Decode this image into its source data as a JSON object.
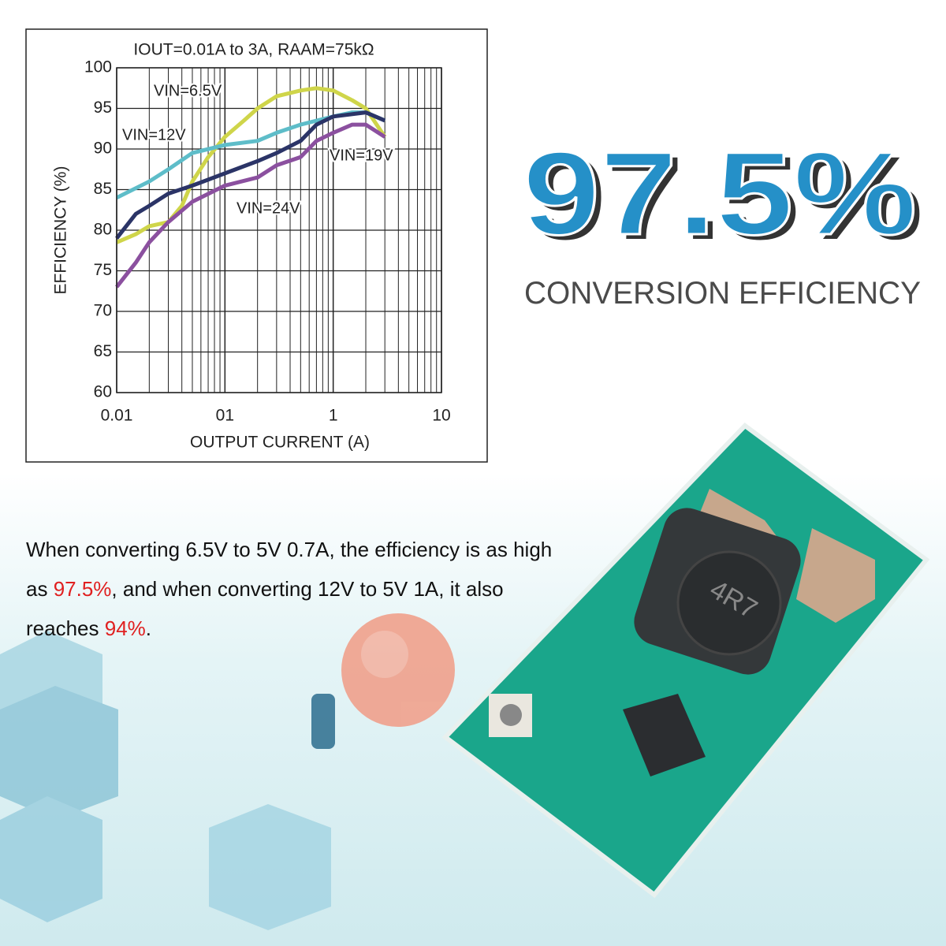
{
  "chart_data": {
    "type": "line",
    "title": "IOUT=0.01A to 3A, RAAM=75kΩ",
    "x_label": "OUTPUT CURRENT (A)",
    "y_label": "EFFICIENCY (%)",
    "x_scale": "log",
    "xlim": [
      0.01,
      10
    ],
    "xticks": [
      0.01,
      {
        "value": 0.1,
        "label": "01"
      },
      1,
      10
    ],
    "ylim": [
      60,
      100
    ],
    "yticks": [
      60,
      65,
      70,
      75,
      80,
      85,
      90,
      95,
      100
    ],
    "grid": true,
    "minor_grid": true,
    "series": [
      {
        "name": "VIN=6.5V",
        "color": "#cfd54a",
        "x": [
          0.01,
          0.015,
          0.02,
          0.03,
          0.04,
          0.05,
          0.07,
          0.1,
          0.15,
          0.2,
          0.3,
          0.5,
          0.7,
          1,
          1.5,
          2,
          3
        ],
        "values": [
          78.5,
          79.5,
          80.5,
          81,
          83,
          86,
          89,
          91.5,
          93.5,
          95,
          96.5,
          97.2,
          97.5,
          97.2,
          96,
          95,
          91.5
        ]
      },
      {
        "name": "VIN=12V",
        "color": "#5ebdc9",
        "x": [
          0.01,
          0.02,
          0.03,
          0.05,
          0.1,
          0.2,
          0.3,
          0.5,
          1,
          1.5,
          2,
          3
        ],
        "values": [
          84,
          86,
          87.5,
          89.5,
          90.5,
          91,
          92,
          93,
          94,
          94.5,
          94.5,
          93.5
        ]
      },
      {
        "name": "VIN=19V",
        "color": "#2b3467",
        "x": [
          0.01,
          0.015,
          0.02,
          0.03,
          0.05,
          0.1,
          0.2,
          0.3,
          0.5,
          0.7,
          1,
          2,
          3
        ],
        "values": [
          79,
          82,
          83,
          84.5,
          85.5,
          87,
          88.5,
          89.5,
          91,
          93,
          94,
          94.5,
          93.5
        ]
      },
      {
        "name": "VIN=24V",
        "color": "#8b509f",
        "x": [
          0.01,
          0.015,
          0.02,
          0.03,
          0.05,
          0.1,
          0.2,
          0.3,
          0.5,
          0.7,
          1,
          1.5,
          2,
          3
        ],
        "values": [
          73,
          76,
          78.5,
          81,
          83.5,
          85.5,
          86.5,
          88,
          89,
          91,
          92,
          93,
          93,
          91.5
        ]
      }
    ]
  },
  "headline": {
    "value": "97.5%",
    "caption": "CONVERSION EFFICIENCY"
  },
  "description": [
    "When converting 6.5V to 5V 0.7A, the efficiency is as high as ",
    "97.5%",
    ", and when converting 12V to 5V 1A, it also reaches ",
    "94%",
    "."
  ]
}
